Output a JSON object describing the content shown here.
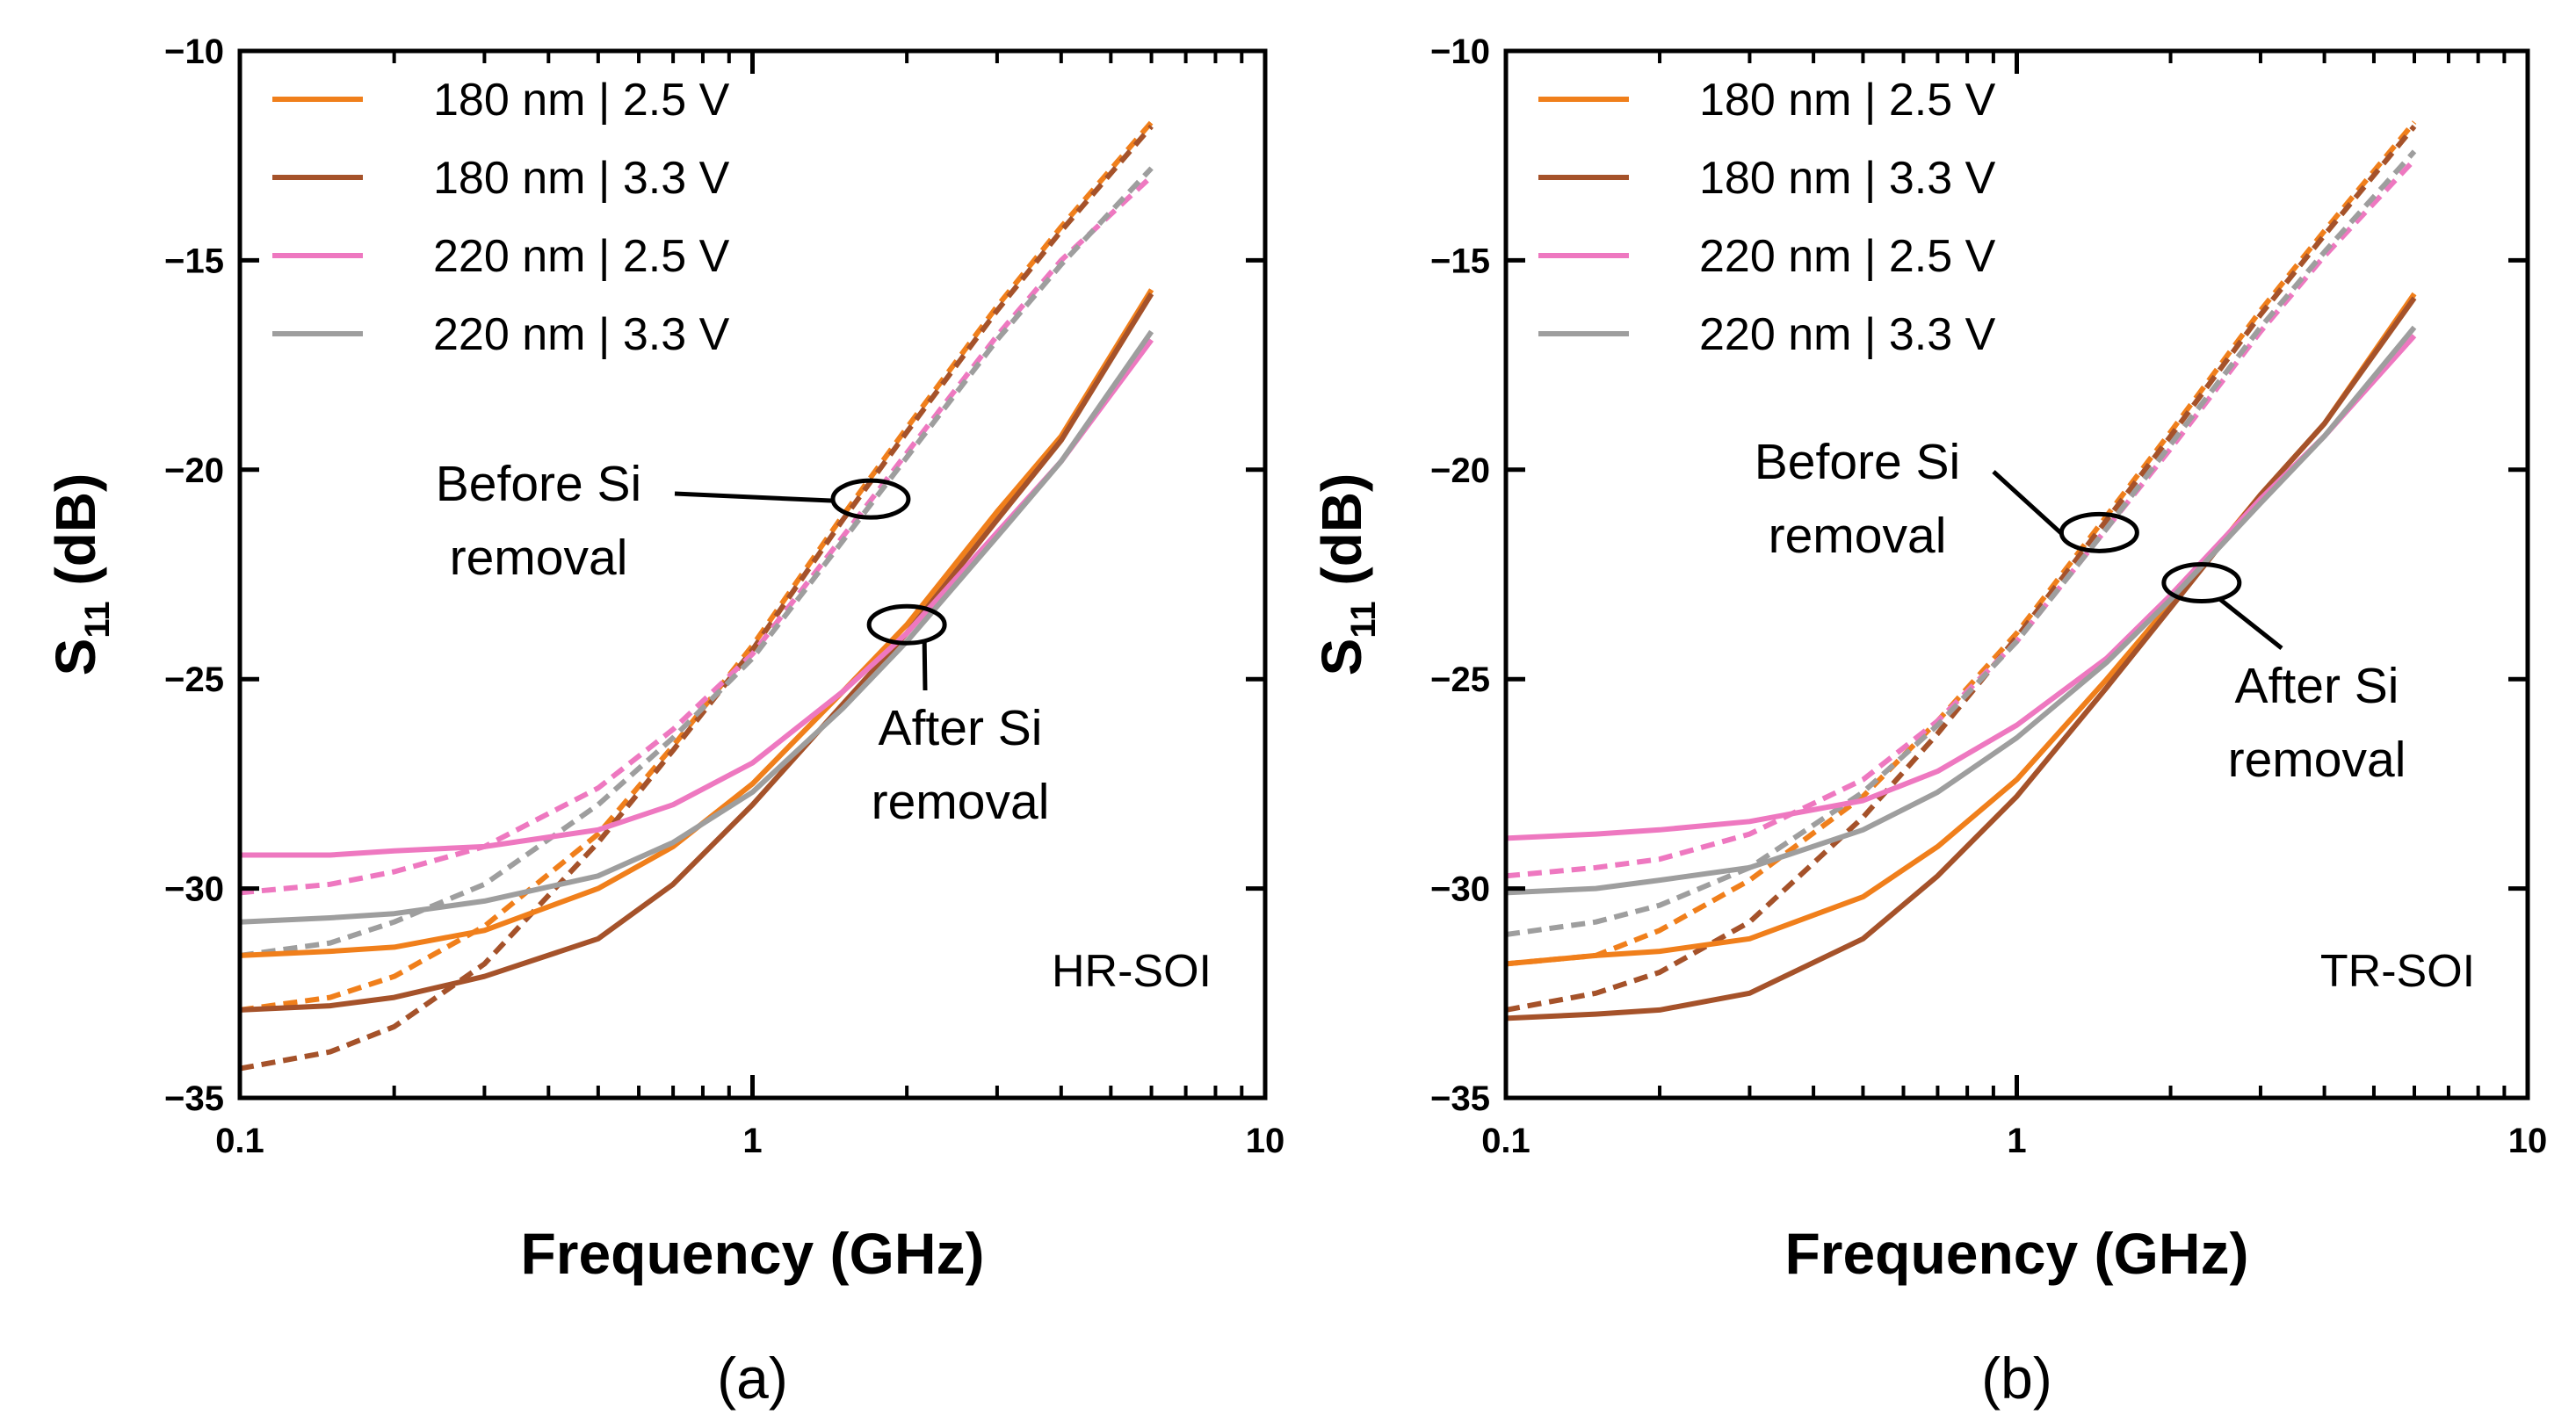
{
  "chart_data": [
    {
      "type": "line",
      "panel_label": "(a)",
      "substrate": "HR-SOI",
      "xlabel": "Frequency (GHz)",
      "ylabel": {
        "main": "S",
        "sub": "11",
        "suffix": " (dB)"
      },
      "xscale": "log",
      "xlim": [
        0.1,
        10
      ],
      "ylim": [
        -35,
        -10
      ],
      "xticks": [
        0.1,
        1,
        10
      ],
      "xtick_labels": [
        "0.1",
        "1",
        "10"
      ],
      "yticks": [
        -35,
        -30,
        -25,
        -20,
        -15,
        -10
      ],
      "ytick_labels": [
        "−35",
        "−30",
        "−25",
        "−20",
        "−15",
        "−10"
      ],
      "legend_position": "top-left",
      "annotations": [
        {
          "text_lines": [
            "Before Si",
            "removal"
          ],
          "x": 1.7,
          "y": -20.7
        },
        {
          "text_lines": [
            "After Si",
            "removal"
          ],
          "x": 2.0,
          "y": -23.7
        }
      ],
      "series": [
        {
          "name": "180 nm | 2.5 V",
          "color": "#F07F1B",
          "group": "before",
          "style": "dashed",
          "x": [
            0.1,
            0.15,
            0.2,
            0.3,
            0.5,
            0.7,
            1,
            1.5,
            2,
            3,
            4,
            6
          ],
          "y": [
            -32.9,
            -32.6,
            -32.1,
            -30.9,
            -28.7,
            -26.6,
            -24.2,
            -21.1,
            -19.0,
            -16.1,
            -14.2,
            -11.7
          ]
        },
        {
          "name": "180 nm | 3.3 V",
          "color": "#A5522A",
          "group": "before",
          "style": "dashed",
          "x": [
            0.1,
            0.15,
            0.2,
            0.3,
            0.5,
            0.7,
            1,
            1.5,
            2,
            3,
            4,
            6
          ],
          "y": [
            -34.3,
            -33.9,
            -33.3,
            -31.8,
            -28.9,
            -26.7,
            -24.3,
            -21.2,
            -19.1,
            -16.2,
            -14.3,
            -11.8
          ]
        },
        {
          "name": "220 nm | 2.5 V",
          "color": "#EE78C0",
          "group": "before",
          "style": "dashed",
          "x": [
            0.1,
            0.15,
            0.2,
            0.3,
            0.5,
            0.7,
            1,
            1.5,
            2,
            3,
            4,
            6
          ],
          "y": [
            -30.1,
            -29.9,
            -29.6,
            -29.0,
            -27.6,
            -26.2,
            -24.4,
            -21.6,
            -19.6,
            -16.8,
            -15.0,
            -13.0
          ]
        },
        {
          "name": "220 nm | 3.3 V",
          "color": "#9E9E9E",
          "group": "before",
          "style": "dashed",
          "x": [
            0.1,
            0.15,
            0.2,
            0.3,
            0.5,
            0.7,
            1,
            1.5,
            2,
            3,
            4,
            6
          ],
          "y": [
            -31.6,
            -31.3,
            -30.8,
            -29.9,
            -28.0,
            -26.4,
            -24.5,
            -21.7,
            -19.7,
            -16.9,
            -15.1,
            -12.8
          ]
        },
        {
          "name": "180 nm | 2.5 V",
          "color": "#F07F1B",
          "group": "after",
          "style": "solid",
          "x": [
            0.1,
            0.15,
            0.2,
            0.3,
            0.5,
            0.7,
            1,
            1.5,
            2,
            3,
            4,
            6
          ],
          "y": [
            -31.6,
            -31.5,
            -31.4,
            -31.0,
            -30.0,
            -29.0,
            -27.5,
            -25.3,
            -23.7,
            -21.0,
            -19.2,
            -15.7
          ]
        },
        {
          "name": "180 nm | 3.3 V",
          "color": "#A5522A",
          "group": "after",
          "style": "solid",
          "x": [
            0.1,
            0.15,
            0.2,
            0.3,
            0.5,
            0.7,
            1,
            1.5,
            2,
            3,
            4,
            6
          ],
          "y": [
            -32.9,
            -32.8,
            -32.6,
            -32.1,
            -31.2,
            -29.9,
            -28.0,
            -25.6,
            -23.9,
            -21.2,
            -19.3,
            -15.8
          ]
        },
        {
          "name": "220 nm | 2.5 V",
          "color": "#EE78C0",
          "group": "after",
          "style": "solid",
          "x": [
            0.1,
            0.15,
            0.2,
            0.3,
            0.5,
            0.7,
            1,
            1.5,
            2,
            3,
            4,
            6
          ],
          "y": [
            -29.2,
            -29.2,
            -29.1,
            -29.0,
            -28.6,
            -28.0,
            -27.0,
            -25.3,
            -23.9,
            -21.5,
            -19.8,
            -16.9
          ]
        },
        {
          "name": "220 nm | 3.3 V",
          "color": "#9E9E9E",
          "group": "after",
          "style": "solid",
          "x": [
            0.1,
            0.15,
            0.2,
            0.3,
            0.5,
            0.7,
            1,
            1.5,
            2,
            3,
            4,
            6
          ],
          "y": [
            -30.8,
            -30.7,
            -30.6,
            -30.3,
            -29.7,
            -28.9,
            -27.7,
            -25.7,
            -24.1,
            -21.6,
            -19.8,
            -16.7
          ]
        }
      ]
    },
    {
      "type": "line",
      "panel_label": "(b)",
      "substrate": "TR-SOI",
      "xlabel": "Frequency (GHz)",
      "ylabel": {
        "main": "S",
        "sub": "11",
        "suffix": " (dB)"
      },
      "xscale": "log",
      "xlim": [
        0.1,
        10
      ],
      "ylim": [
        -35,
        -10
      ],
      "xticks": [
        0.1,
        1,
        10
      ],
      "xtick_labels": [
        "0.1",
        "1",
        "10"
      ],
      "yticks": [
        -35,
        -30,
        -25,
        -20,
        -15,
        -10
      ],
      "ytick_labels": [
        "−35",
        "−30",
        "−25",
        "−20",
        "−15",
        "−10"
      ],
      "legend_position": "top-left",
      "annotations": [
        {
          "text_lines": [
            "Before Si",
            "removal"
          ],
          "x": 1.45,
          "y": -21.5
        },
        {
          "text_lines": [
            "After Si",
            "removal"
          ],
          "x": 2.3,
          "y": -22.7
        }
      ],
      "series": [
        {
          "name": "180 nm | 2.5 V",
          "color": "#F07F1B",
          "group": "before",
          "style": "dashed",
          "x": [
            0.1,
            0.15,
            0.2,
            0.3,
            0.5,
            0.7,
            1,
            1.5,
            2,
            3,
            4,
            6
          ],
          "y": [
            -31.8,
            -31.6,
            -31.0,
            -29.8,
            -27.8,
            -26.0,
            -23.9,
            -21.1,
            -19.1,
            -16.2,
            -14.3,
            -11.7
          ]
        },
        {
          "name": "180 nm | 3.3 V",
          "color": "#A5522A",
          "group": "before",
          "style": "dashed",
          "x": [
            0.1,
            0.15,
            0.2,
            0.3,
            0.5,
            0.7,
            1,
            1.5,
            2,
            3,
            4,
            6
          ],
          "y": [
            -32.9,
            -32.5,
            -32.0,
            -30.8,
            -28.3,
            -26.3,
            -24.0,
            -21.2,
            -19.2,
            -16.3,
            -14.4,
            -11.8
          ]
        },
        {
          "name": "220 nm | 2.5 V",
          "color": "#EE78C0",
          "group": "before",
          "style": "dashed",
          "x": [
            0.1,
            0.15,
            0.2,
            0.3,
            0.5,
            0.7,
            1,
            1.5,
            2,
            3,
            4,
            6
          ],
          "y": [
            -29.7,
            -29.5,
            -29.3,
            -28.7,
            -27.4,
            -26.0,
            -24.1,
            -21.4,
            -19.5,
            -16.7,
            -14.9,
            -12.6
          ]
        },
        {
          "name": "220 nm | 3.3 V",
          "color": "#9E9E9E",
          "group": "before",
          "style": "dashed",
          "x": [
            0.1,
            0.15,
            0.2,
            0.3,
            0.5,
            0.7,
            1,
            1.5,
            2,
            3,
            4,
            6
          ],
          "y": [
            -31.1,
            -30.8,
            -30.4,
            -29.5,
            -27.7,
            -26.1,
            -24.1,
            -21.4,
            -19.4,
            -16.6,
            -14.8,
            -12.4
          ]
        },
        {
          "name": "180 nm | 2.5 V",
          "color": "#F07F1B",
          "group": "after",
          "style": "solid",
          "x": [
            0.1,
            0.15,
            0.2,
            0.3,
            0.5,
            0.7,
            1,
            1.5,
            2,
            3,
            4,
            6
          ],
          "y": [
            -31.8,
            -31.6,
            -31.5,
            -31.2,
            -30.2,
            -29.0,
            -27.4,
            -25.0,
            -23.2,
            -20.6,
            -18.9,
            -15.8
          ]
        },
        {
          "name": "180 nm | 3.3 V",
          "color": "#A5522A",
          "group": "after",
          "style": "solid",
          "x": [
            0.1,
            0.15,
            0.2,
            0.3,
            0.5,
            0.7,
            1,
            1.5,
            2,
            3,
            4,
            6
          ],
          "y": [
            -33.1,
            -33.0,
            -32.9,
            -32.5,
            -31.2,
            -29.7,
            -27.8,
            -25.2,
            -23.3,
            -20.6,
            -18.9,
            -15.9
          ]
        },
        {
          "name": "220 nm | 2.5 V",
          "color": "#EE78C0",
          "group": "after",
          "style": "solid",
          "x": [
            0.1,
            0.15,
            0.2,
            0.3,
            0.5,
            0.7,
            1,
            1.5,
            2,
            3,
            4,
            6
          ],
          "y": [
            -28.8,
            -28.7,
            -28.6,
            -28.4,
            -27.9,
            -27.2,
            -26.1,
            -24.5,
            -23.0,
            -20.7,
            -19.2,
            -16.8
          ]
        },
        {
          "name": "220 nm | 3.3 V",
          "color": "#9E9E9E",
          "group": "after",
          "style": "solid",
          "x": [
            0.1,
            0.15,
            0.2,
            0.3,
            0.5,
            0.7,
            1,
            1.5,
            2,
            3,
            4,
            6
          ],
          "y": [
            -30.1,
            -30.0,
            -29.8,
            -29.5,
            -28.6,
            -27.7,
            -26.4,
            -24.6,
            -23.1,
            -20.8,
            -19.2,
            -16.6
          ]
        }
      ]
    }
  ]
}
